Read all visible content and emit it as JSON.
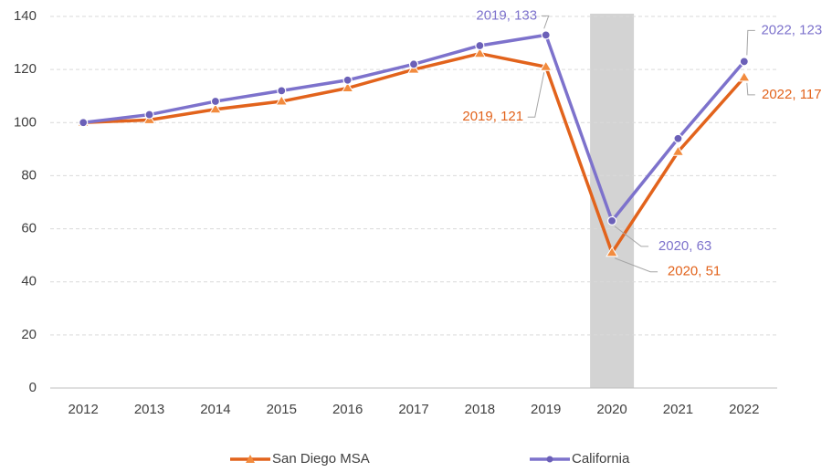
{
  "chart_data": {
    "type": "line",
    "categories": [
      "2012",
      "2013",
      "2014",
      "2015",
      "2016",
      "2017",
      "2018",
      "2019",
      "2020",
      "2021",
      "2022"
    ],
    "series": [
      {
        "name": "San Diego MSA",
        "color": "#e2631c",
        "marker": "triangle",
        "marker_color": "#f28b3e",
        "values": [
          100,
          101,
          105,
          108,
          113,
          120,
          126,
          121,
          51,
          89,
          117
        ],
        "value_labels": [
          null,
          null,
          null,
          null,
          null,
          null,
          null,
          "2019, 121",
          "2020, 51",
          null,
          "2022, 117"
        ]
      },
      {
        "name": "California",
        "color": "#7d72cc",
        "marker": "circle",
        "marker_color": "#6b60b8",
        "values": [
          100,
          103,
          108,
          112,
          116,
          122,
          129,
          133,
          63,
          94,
          123
        ],
        "value_labels": [
          null,
          null,
          null,
          null,
          null,
          null,
          null,
          "2019, 133",
          "2020, 63",
          null,
          "2022, 123"
        ]
      }
    ],
    "highlight": {
      "category": "2020",
      "color": "#d3d3d3"
    },
    "ylim": [
      0,
      140
    ],
    "yticks": [
      0,
      20,
      40,
      60,
      80,
      100,
      120,
      140
    ],
    "grid": true,
    "legend": "bottom"
  }
}
